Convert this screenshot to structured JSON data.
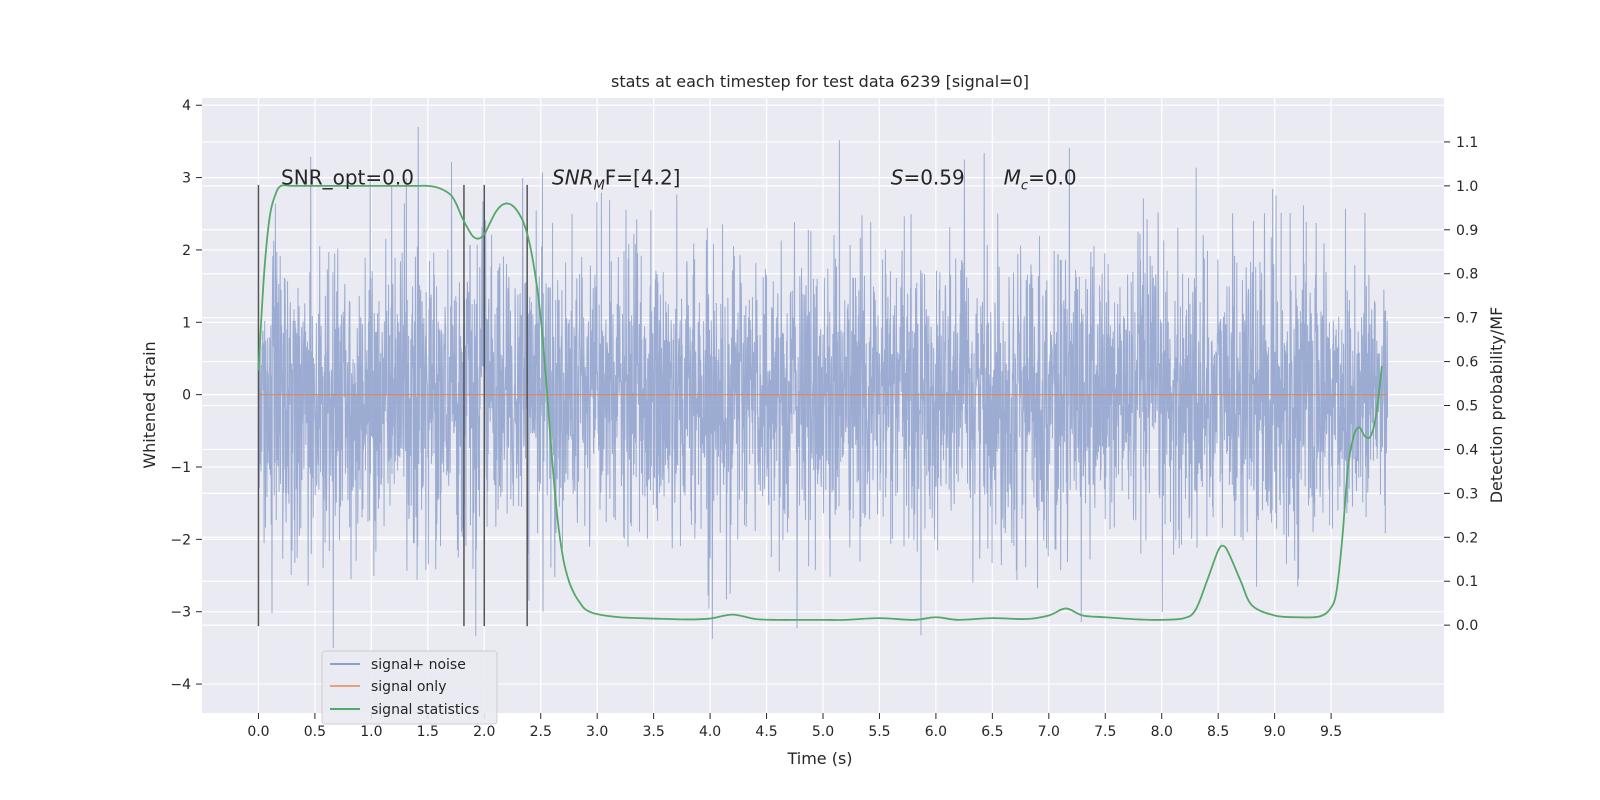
{
  "chart_data": {
    "type": "line",
    "title": "stats at each timestep for test data 6239 [signal=0]",
    "xlabel": "Time (s)",
    "ylabel": "Whitened strain",
    "ylabel_right": "Detection probability/MF",
    "xlim": [
      -0.5,
      10.5
    ],
    "ylim": [
      -4.4,
      4.1
    ],
    "ylim_right": [
      -0.2,
      1.2
    ],
    "x_ticks": [
      0.0,
      0.5,
      1.0,
      1.5,
      2.0,
      2.5,
      3.0,
      3.5,
      4.0,
      4.5,
      5.0,
      5.5,
      6.0,
      6.5,
      7.0,
      7.5,
      8.0,
      8.5,
      9.0,
      9.5
    ],
    "x_tick_labels": [
      "0.0",
      "0.5",
      "1.0",
      "1.5",
      "2.0",
      "2.5",
      "3.0",
      "3.5",
      "4.0",
      "4.5",
      "5.0",
      "5.5",
      "6.0",
      "6.5",
      "7.0",
      "7.5",
      "8.0",
      "8.5",
      "9.0",
      "9.5"
    ],
    "y_ticks": [
      -4,
      -3,
      -2,
      -1,
      0,
      1,
      2,
      3,
      4
    ],
    "y_tick_labels": [
      "−4",
      "−3",
      "−2",
      "−1",
      "0",
      "1",
      "2",
      "3",
      "4"
    ],
    "y_right_ticks": [
      0.0,
      0.1,
      0.2,
      0.3,
      0.4,
      0.5,
      0.6,
      0.7,
      0.8,
      0.9,
      1.0,
      1.1
    ],
    "y_right_tick_labels": [
      "0.0",
      "0.1",
      "0.2",
      "0.3",
      "0.4",
      "0.5",
      "0.6",
      "0.7",
      "0.8",
      "0.9",
      "1.0",
      "1.1"
    ],
    "grid": true,
    "legend_position": "lower-left",
    "colors": {
      "noise": "#8da0cb",
      "signal": "#dd8452",
      "stats": "#55a868",
      "markers": "#555555",
      "background": "#eaeaf2",
      "grid": "#ffffff"
    },
    "series": [
      {
        "name": "signal+ noise",
        "axis": "left",
        "x_range": [
          0.0,
          10.0
        ],
        "approx_abs_range": [
          -3.5,
          3.7
        ],
        "description_typical_band": [
          -1.5,
          1.7
        ]
      },
      {
        "name": "signal only",
        "axis": "left",
        "x": [
          0.0,
          10.0
        ],
        "y": [
          0.0,
          0.0
        ]
      },
      {
        "name": "signal statistics",
        "axis": "right",
        "x": [
          0.0,
          0.05,
          0.1,
          0.15,
          0.2,
          0.3,
          0.5,
          0.8,
          1.0,
          1.2,
          1.4,
          1.5,
          1.6,
          1.7,
          1.75,
          1.8,
          1.85,
          1.9,
          1.95,
          2.0,
          2.05,
          2.1,
          2.15,
          2.2,
          2.25,
          2.3,
          2.35,
          2.4,
          2.45,
          2.5,
          2.55,
          2.6,
          2.65,
          2.7,
          2.75,
          2.8,
          2.85,
          2.9,
          3.0,
          3.2,
          3.5,
          3.8,
          4.0,
          4.2,
          4.4,
          4.6,
          4.8,
          5.0,
          5.2,
          5.5,
          5.8,
          6.0,
          6.2,
          6.5,
          6.8,
          7.0,
          7.15,
          7.3,
          7.5,
          7.8,
          8.0,
          8.2,
          8.3,
          8.4,
          8.5,
          8.55,
          8.6,
          8.7,
          8.8,
          9.0,
          9.2,
          9.4,
          9.5,
          9.55,
          9.6,
          9.65,
          9.7,
          9.75,
          9.8,
          9.85,
          9.9,
          9.95
        ],
        "y": [
          0.58,
          0.8,
          0.93,
          0.98,
          1.0,
          1.0,
          1.0,
          1.0,
          1.0,
          1.0,
          1.0,
          1.0,
          0.995,
          0.98,
          0.96,
          0.93,
          0.905,
          0.885,
          0.88,
          0.89,
          0.915,
          0.94,
          0.955,
          0.96,
          0.955,
          0.94,
          0.915,
          0.87,
          0.8,
          0.7,
          0.55,
          0.38,
          0.24,
          0.15,
          0.1,
          0.07,
          0.05,
          0.035,
          0.025,
          0.018,
          0.015,
          0.013,
          0.015,
          0.024,
          0.014,
          0.012,
          0.012,
          0.012,
          0.012,
          0.016,
          0.012,
          0.018,
          0.012,
          0.016,
          0.014,
          0.022,
          0.038,
          0.022,
          0.018,
          0.013,
          0.012,
          0.016,
          0.035,
          0.1,
          0.17,
          0.18,
          0.16,
          0.1,
          0.045,
          0.022,
          0.018,
          0.02,
          0.04,
          0.08,
          0.2,
          0.36,
          0.43,
          0.45,
          0.43,
          0.43,
          0.48,
          0.59
        ]
      }
    ],
    "vertical_markers": [
      {
        "x": 0.0,
        "y_range": [
          -3.2,
          2.9
        ]
      },
      {
        "x": 1.82,
        "y_range": [
          -3.2,
          2.9
        ]
      },
      {
        "x": 2.0,
        "y_range": [
          -3.2,
          2.9
        ]
      },
      {
        "x": 2.38,
        "y_range": [
          -3.2,
          2.9
        ]
      }
    ],
    "annotations": [
      {
        "id": "snr_opt",
        "x": 0.2,
        "y": 3.0,
        "text": "SNR_opt=0.0"
      },
      {
        "id": "snr_mf",
        "x": 2.6,
        "y": 3.0,
        "prefix": "SNR",
        "sub": "M",
        "suffix": "F=[4.2]"
      },
      {
        "id": "s",
        "x": 5.6,
        "y": 3.0,
        "prefix": "S",
        "suffix": "=0.59"
      },
      {
        "id": "mc",
        "x": 6.6,
        "y": 3.0,
        "prefix": "M",
        "sub": "c",
        "suffix": "=0.0"
      }
    ]
  }
}
